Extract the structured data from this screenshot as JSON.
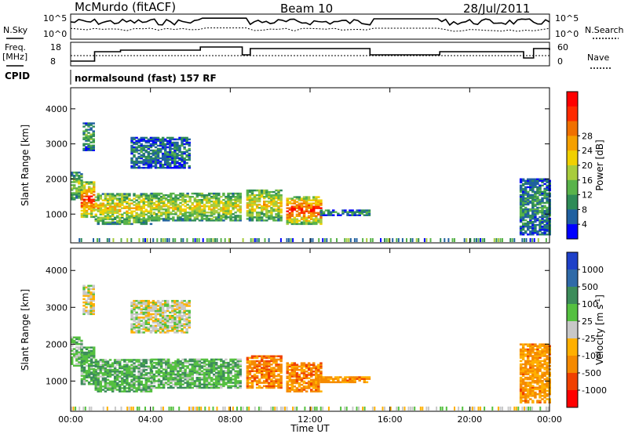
{
  "header": {
    "station": "McMurdo (fitACF)",
    "beam": "Beam 10",
    "date": "28/Jul/2011",
    "program": "normalsound (fast) 157 RF"
  },
  "top_panels": {
    "nsky_label": "N.Sky",
    "nsearch_label": "N.Search",
    "freq_label_1": "Freq.",
    "freq_label_2": "[MHz]",
    "nave_label": "Nave",
    "cpid_label": "CPID",
    "noise_ticks_left": [
      "10^5",
      "10^0"
    ],
    "noise_ticks_right": [
      "10^5",
      "10^0"
    ],
    "freq_ticks": [
      "18",
      "8"
    ],
    "nave_ticks": [
      "60",
      "0"
    ]
  },
  "chart_data": [
    {
      "type": "heatmap",
      "name": "power",
      "ylabel": "Slant Range [km]",
      "ylim": [
        180,
        4600
      ],
      "yticks": [
        "1000",
        "2000",
        "3000",
        "4000"
      ],
      "xlim": [
        0,
        24
      ],
      "colorbar": {
        "label": "Power [dB]",
        "ticks": [
          "4",
          "8",
          "12",
          "16",
          "20",
          "24",
          "28"
        ],
        "colors": [
          "#0000ff",
          "#2060a0",
          "#2e8b57",
          "#59b34a",
          "#a8cc3c",
          "#f0d000",
          "#f5a000",
          "#f07000",
          "#ff2a00",
          "#ff0000"
        ]
      },
      "regions": [
        {
          "t0": 0.0,
          "t1": 0.5,
          "r0": 1400,
          "r1": 2200,
          "level": 0.45
        },
        {
          "t0": 0.5,
          "t1": 1.2,
          "r0": 900,
          "r1": 1900,
          "level": 0.9
        },
        {
          "t0": 1.2,
          "t1": 4.0,
          "r0": 700,
          "r1": 1600,
          "level": 0.6
        },
        {
          "t0": 4.0,
          "t1": 8.5,
          "r0": 800,
          "r1": 1600,
          "level": 0.55
        },
        {
          "t0": 8.8,
          "t1": 10.5,
          "r0": 800,
          "r1": 1700,
          "level": 0.6
        },
        {
          "t0": 10.8,
          "t1": 12.5,
          "r0": 700,
          "r1": 1500,
          "level": 0.9
        },
        {
          "t0": 12.5,
          "t1": 15.0,
          "r0": 950,
          "r1": 1100,
          "level": 0.3
        },
        {
          "t0": 0.6,
          "t1": 1.2,
          "r0": 2800,
          "r1": 3600,
          "level": 0.3
        },
        {
          "t0": 3.0,
          "t1": 6.0,
          "r0": 2300,
          "r1": 3200,
          "level": 0.2
        },
        {
          "t0": 22.5,
          "t1": 24.0,
          "r0": 400,
          "r1": 2000,
          "level": 0.25
        }
      ]
    },
    {
      "type": "heatmap",
      "name": "velocity",
      "ylabel": "Slant Range [km]",
      "xlabel": "Time UT",
      "ylim": [
        180,
        4600
      ],
      "yticks": [
        "1000",
        "2000",
        "3000",
        "4000"
      ],
      "xlim": [
        0,
        24
      ],
      "xticks": [
        "00:00",
        "04:00",
        "08:00",
        "12:00",
        "16:00",
        "20:00",
        "00:00"
      ],
      "colorbar": {
        "label": "Velocity [m s^-1]",
        "ticks": [
          "1000",
          "500",
          "100",
          "25",
          "-25",
          "-100",
          "-500",
          "-1000"
        ],
        "colors": [
          "#1e40c8",
          "#2f6aa8",
          "#3c8c5a",
          "#55c040",
          "#c8c8c8",
          "#ffb000",
          "#f58a00",
          "#f04000",
          "#ff0000"
        ]
      },
      "regions": [
        {
          "t0": 0.0,
          "t1": 0.5,
          "r0": 1400,
          "r1": 2200,
          "vel": 0.2
        },
        {
          "t0": 0.5,
          "t1": 1.2,
          "r0": 900,
          "r1": 1900,
          "vel": 0.35
        },
        {
          "t0": 1.2,
          "t1": 4.0,
          "r0": 700,
          "r1": 1600,
          "vel": 0.3
        },
        {
          "t0": 4.0,
          "t1": 8.5,
          "r0": 800,
          "r1": 1600,
          "vel": 0.3
        },
        {
          "t0": 8.8,
          "t1": 10.5,
          "r0": 800,
          "r1": 1700,
          "vel": -0.5
        },
        {
          "t0": 10.8,
          "t1": 12.5,
          "r0": 700,
          "r1": 1500,
          "vel": -0.5
        },
        {
          "t0": 12.5,
          "t1": 15.0,
          "r0": 950,
          "r1": 1100,
          "vel": -0.4
        },
        {
          "t0": 0.6,
          "t1": 1.2,
          "r0": 2800,
          "r1": 3600,
          "vel": 0.0
        },
        {
          "t0": 3.0,
          "t1": 6.0,
          "r0": 2300,
          "r1": 3200,
          "vel": 0.0
        },
        {
          "t0": 22.5,
          "t1": 24.0,
          "r0": 400,
          "r1": 2000,
          "vel": -0.4
        }
      ]
    }
  ]
}
